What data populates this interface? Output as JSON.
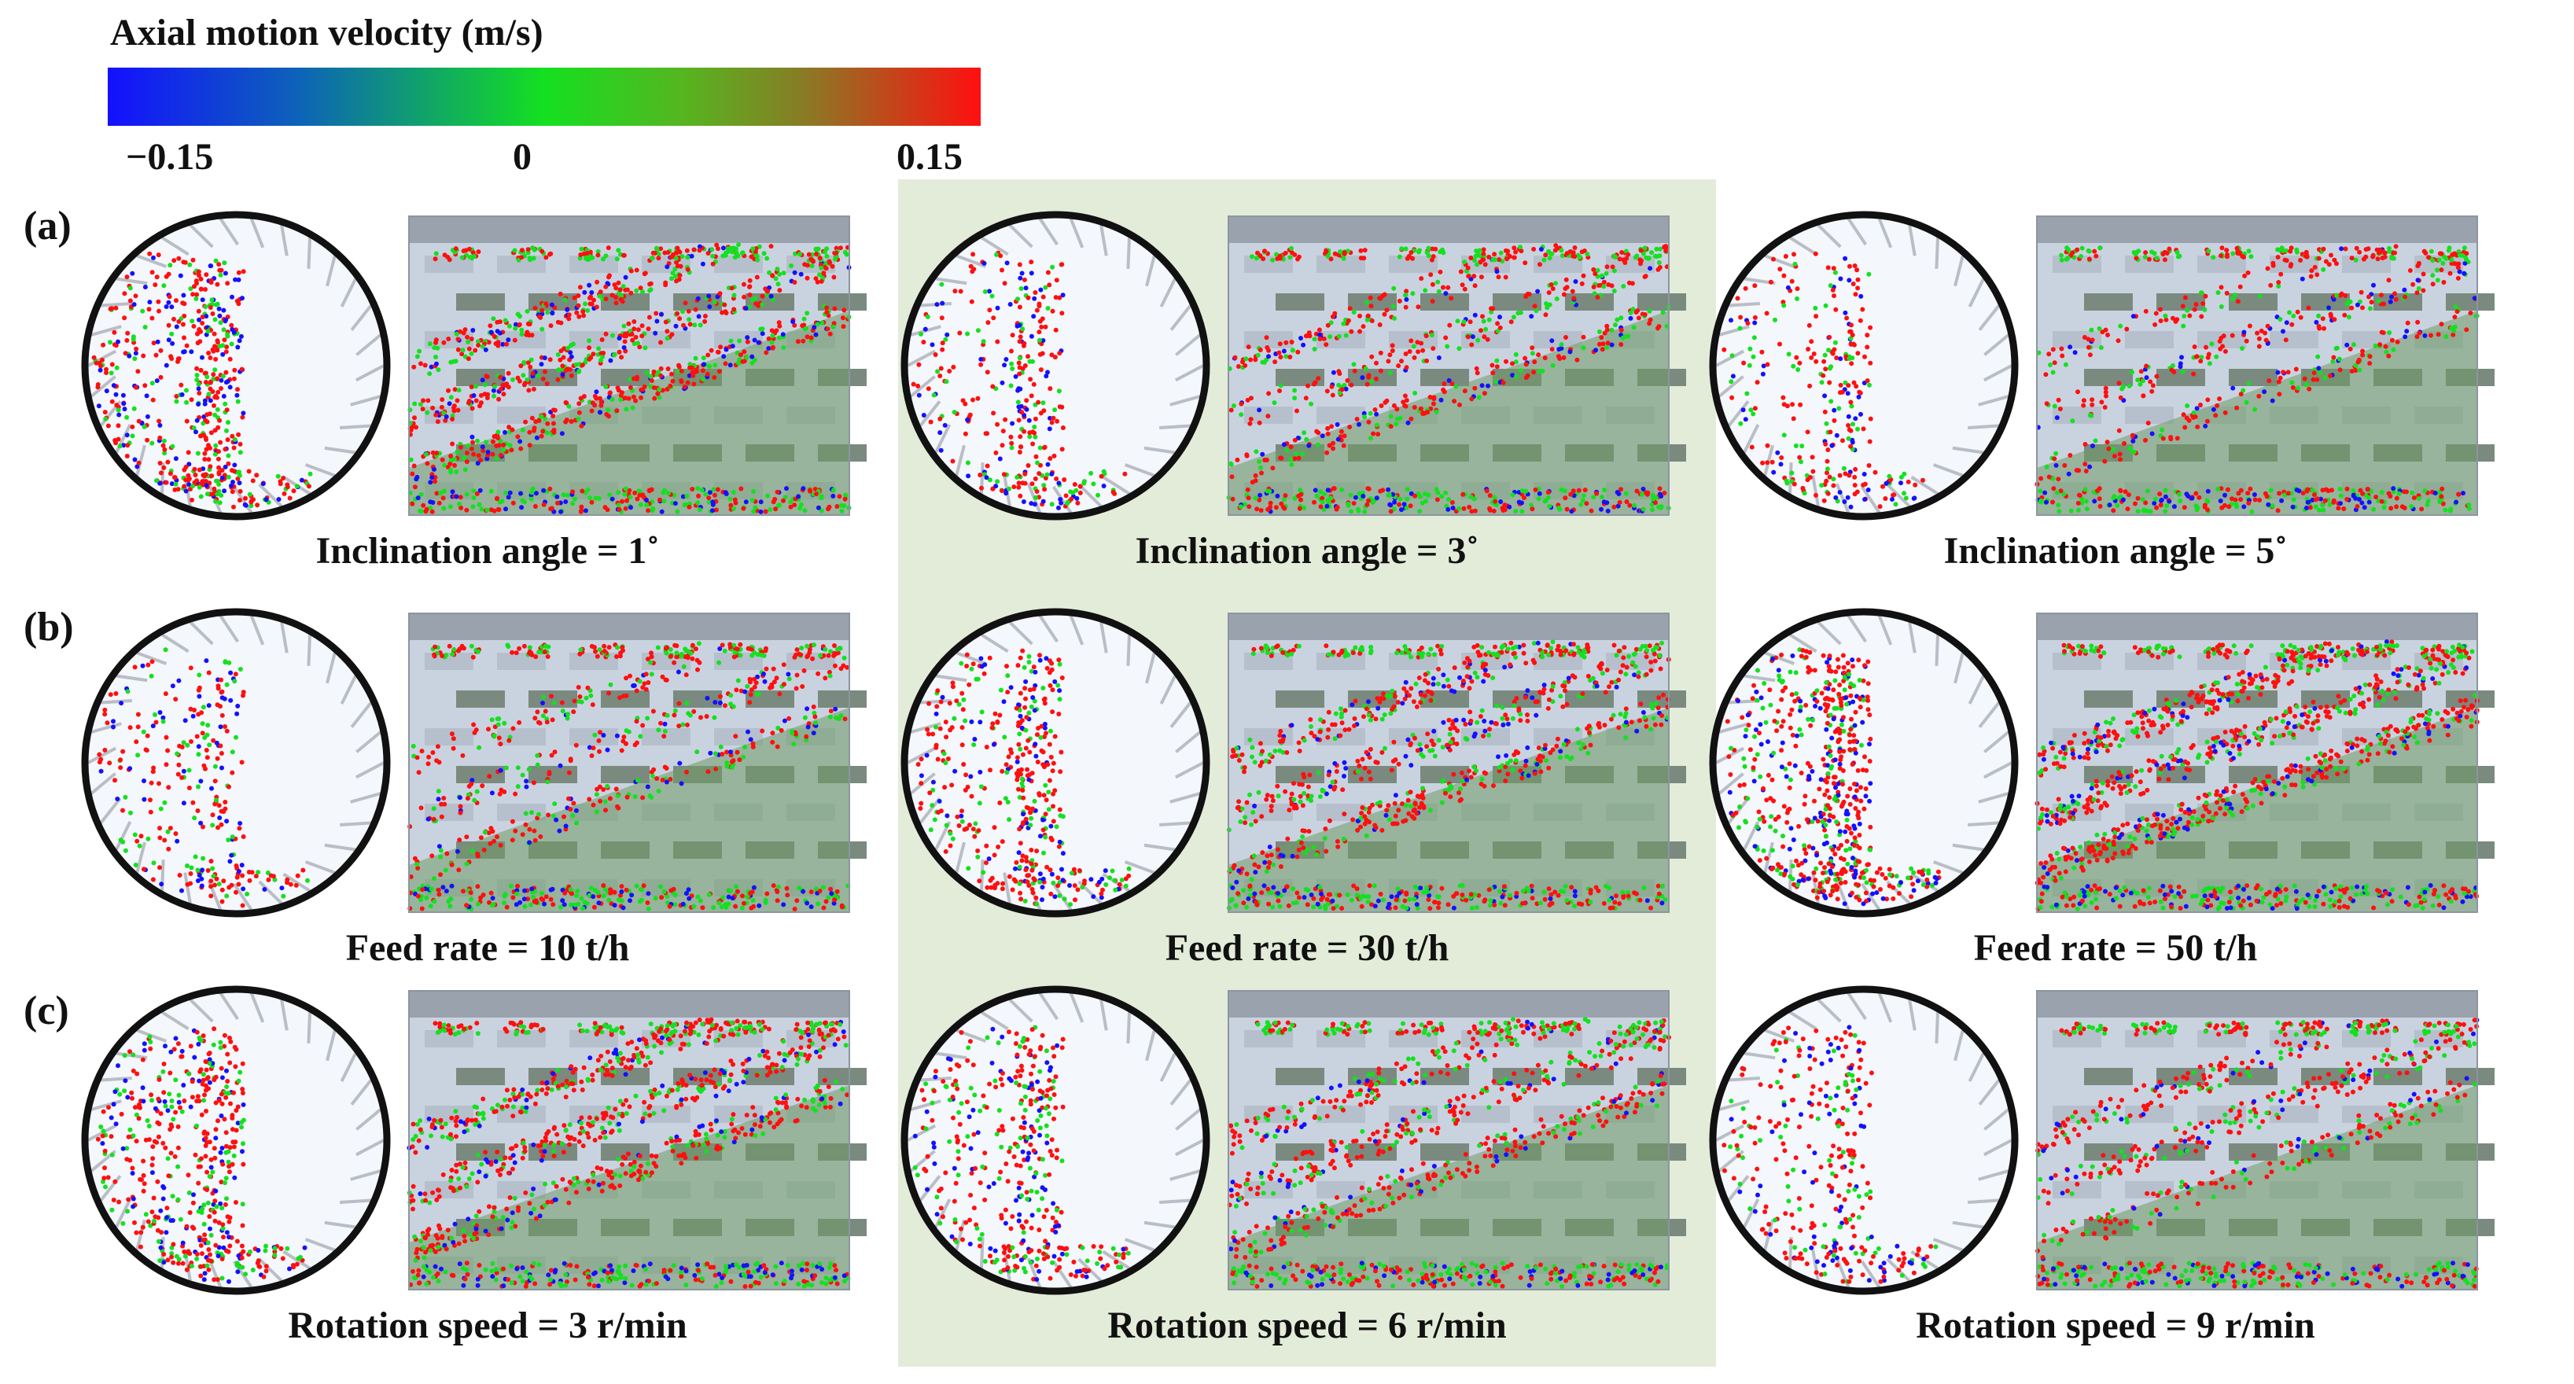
{
  "colorbar": {
    "title": "Axial motion velocity (m/s)",
    "ticks": [
      "−0.15",
      "0",
      "0.15"
    ],
    "colors": [
      "#1410ff",
      "#14e020",
      "#ff0f10"
    ]
  },
  "row_labels": [
    "(a)",
    "(b)",
    "(c)"
  ],
  "panels": [
    {
      "caption": "Inclination angle = 1˚"
    },
    {
      "caption": "Inclination angle = 3˚"
    },
    {
      "caption": "Inclination angle = 5˚"
    },
    {
      "caption": "Feed rate = 10 t/h"
    },
    {
      "caption": "Feed rate = 30 t/h"
    },
    {
      "caption": "Feed rate = 50 t/h"
    },
    {
      "caption": "Rotation speed = 3 r/min"
    },
    {
      "caption": "Rotation speed = 6 r/min"
    },
    {
      "caption": "Rotation speed = 9 r/min"
    }
  ],
  "highlight_color": "#e3ecd9"
}
